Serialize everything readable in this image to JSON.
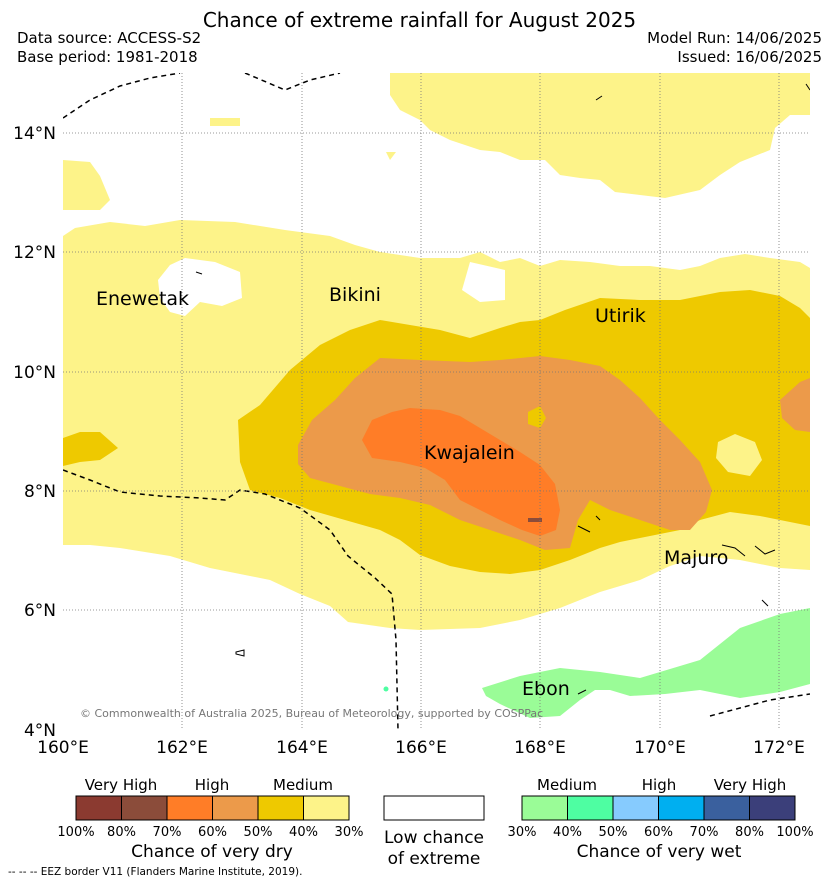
{
  "title": "Chance of extreme rainfall for August 2025",
  "data_source": "Data source: ACCESS-S2",
  "base_period": "Base period: 1981-2018",
  "model_run": "Model Run: 14/06/2025",
  "issued": "Issued: 16/06/2025",
  "lat_labels": [
    "14°N",
    "12°N",
    "10°N",
    "8°N",
    "6°N",
    "4°N"
  ],
  "lon_labels": [
    "160°E",
    "162°E",
    "164°E",
    "166°E",
    "168°E",
    "170°E",
    "172°E"
  ],
  "places": {
    "enewetak": "Enewetak",
    "bikini": "Bikini",
    "utirik": "Utirik",
    "kwajalein": "Kwajalein",
    "majuro": "Majuro",
    "ebon": "Ebon"
  },
  "copyright": "© Commonwealth of Australia 2025, Bureau of Meteorology, supported by COSPPac",
  "legend": {
    "dry": {
      "levels": [
        "Very High",
        "High",
        "Medium"
      ],
      "ticks": [
        "100%",
        "80%",
        "70%",
        "60%",
        "50%",
        "40%",
        "30%"
      ],
      "colors": [
        "#8b3a30",
        "#8b4c3a",
        "#ff7d27",
        "#ec9a4a",
        "#eec900",
        "#fdf389"
      ],
      "title": "Chance of very dry"
    },
    "low": {
      "title_line1": "Low chance",
      "title_line2": "of extreme",
      "color": "#ffffff"
    },
    "wet": {
      "levels": [
        "Medium",
        "High",
        "Very High"
      ],
      "ticks": [
        "30%",
        "40%",
        "50%",
        "60%",
        "70%",
        "80%",
        "100%"
      ],
      "colors": [
        "#9afc97",
        "#4efea2",
        "#86cbfe",
        "#00aff0",
        "#3a609e",
        "#3b3f7a"
      ],
      "title": "Chance of very wet"
    }
  },
  "footnote": "-- -- -- EEZ border V11 (Flanders Marine Institute, 2019)."
}
